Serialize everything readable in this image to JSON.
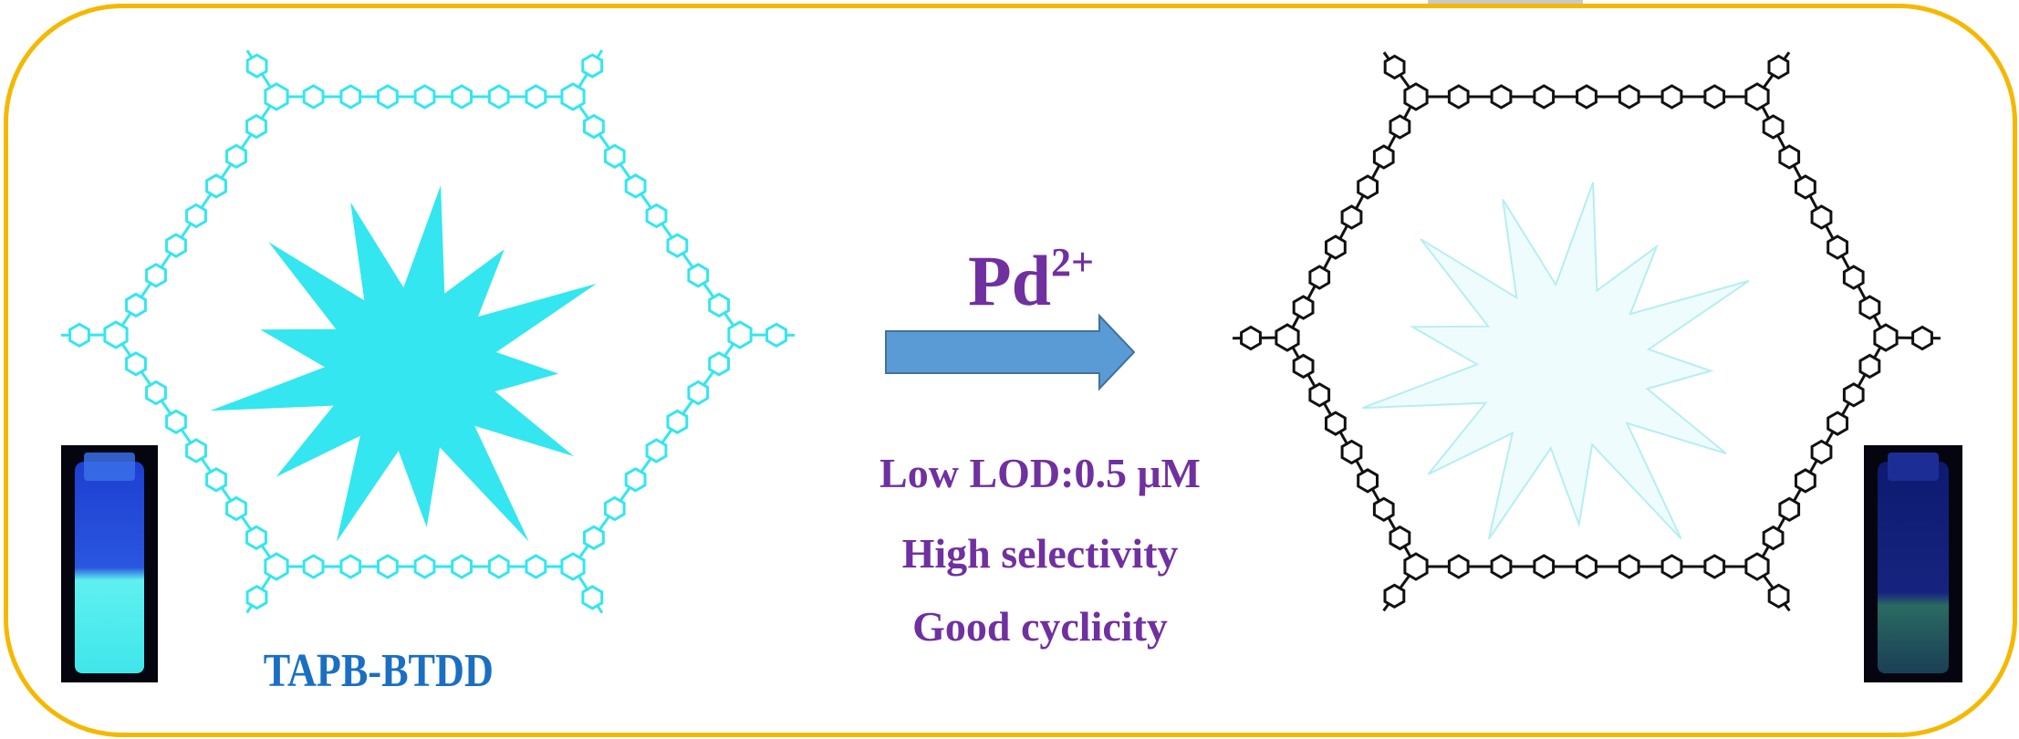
{
  "material_name": "TAPB-BTDD",
  "reagent": {
    "symbol": "Pd",
    "charge": "2+"
  },
  "features": [
    "Low LOD:0.5 μM",
    "High selectivity",
    "Good cyclicity"
  ],
  "states": [
    {
      "name": "before",
      "emission": "strong",
      "framework_color": "#33e6f0",
      "burst_fill": "#33e6f0"
    },
    {
      "name": "after",
      "emission": "quenched",
      "framework_color": "#111111",
      "burst_fill": "#effcfd"
    }
  ],
  "colors": {
    "border": "#f5b800",
    "arrow": "#5b9bd5",
    "text_purple": "#7030a0",
    "text_blue": "#1b6fc2"
  }
}
